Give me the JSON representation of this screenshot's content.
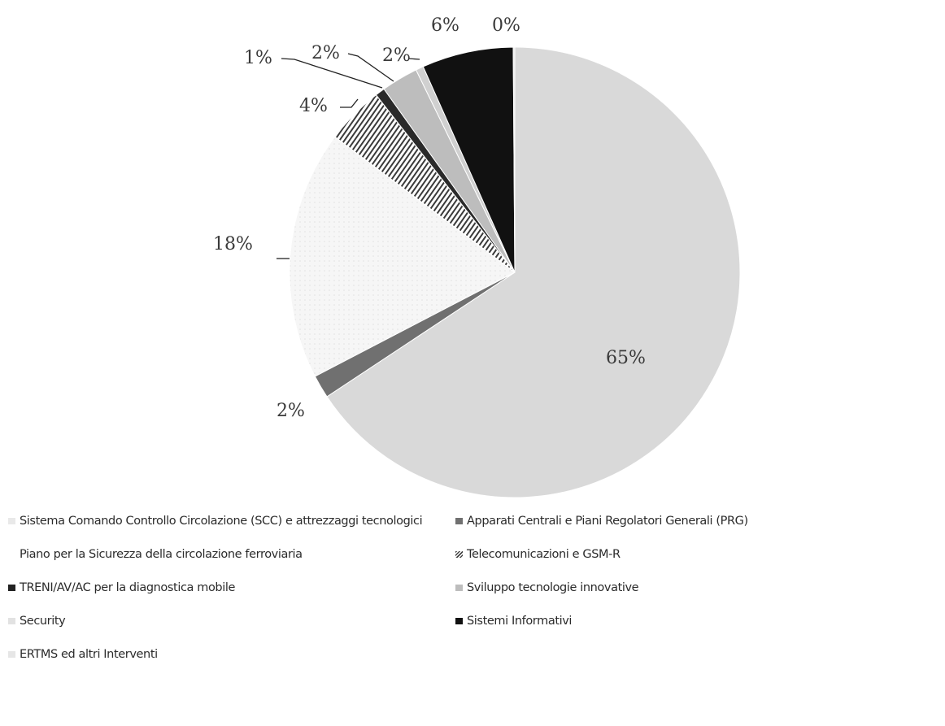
{
  "chart_data": {
    "type": "pie",
    "title": "",
    "slices": [
      {
        "label": "Sistema Comando Controllo Circolazione (SCC) e attrezzaggi tecnologici",
        "value": 65,
        "display": "65%",
        "color": "#d9d9d9"
      },
      {
        "label": "Apparati Centrali e Piani Regolatori Generali (PRG)",
        "value": 2,
        "display": "2%",
        "color": "#707070"
      },
      {
        "label": "Piano per la Sicurezza della circolazione ferroviaria",
        "value": 18,
        "display": "18%",
        "color": "#f4f4f4"
      },
      {
        "label": "Telecomunicazioni e GSM-R",
        "value": 4,
        "display": "4%",
        "color": "#9a9a9a"
      },
      {
        "label": "TRENI/AV/AC per la diagnostica mobile",
        "value": 1,
        "display": "1%",
        "color": "#2a2a2a"
      },
      {
        "label": "Sviluppo tecnologie innovative",
        "value": 2,
        "display": "2%",
        "color": "#bdbdbd"
      },
      {
        "label": "Security",
        "value": 2,
        "display": "2%",
        "color": "#d0d0d0"
      },
      {
        "label": "Sistemi Informativi",
        "value": 6,
        "display": "6%",
        "color": "#111111"
      },
      {
        "label": "ERTMS ed altri Interventi",
        "value": 0,
        "display": "0%",
        "color": "#e6e6e6"
      }
    ],
    "legend_position": "bottom"
  }
}
